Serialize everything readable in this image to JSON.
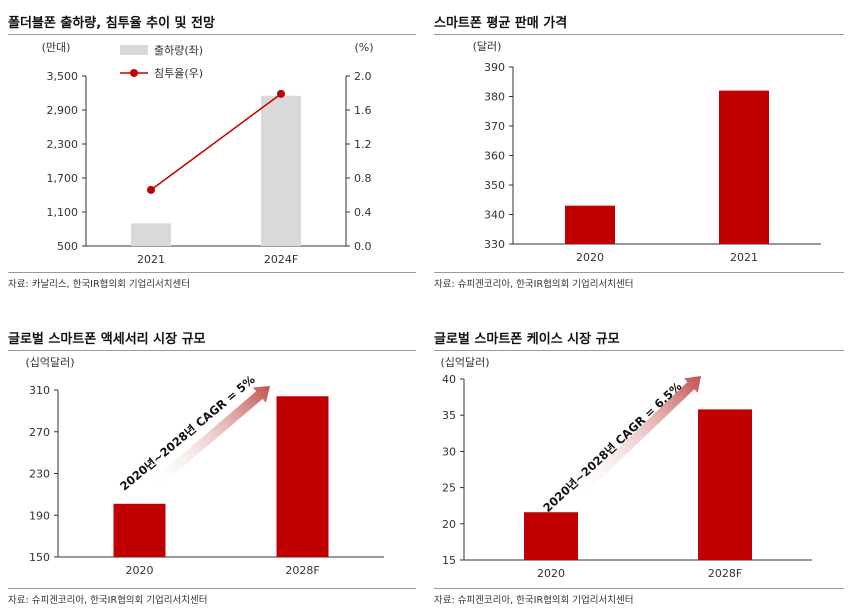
{
  "chart_data": [
    {
      "type": "bar",
      "title": "폴더블폰 출하량, 침투율 추이 및 전망",
      "left_unit": "(만대)",
      "right_unit": "(%)",
      "categories": [
        "2021",
        "2024F"
      ],
      "yticks": [
        "3,500",
        "2,900",
        "2,300",
        "1,700",
        "1,100",
        "500"
      ],
      "y2ticks": [
        "2.0",
        "1.6",
        "1.2",
        "0.8",
        "0.4",
        "0.0"
      ],
      "ylim": [
        500,
        3500
      ],
      "y2lim": [
        0,
        2.0
      ],
      "series": [
        {
          "name": "출하량(좌)",
          "kind": "bar",
          "axis": "left",
          "values": [
            900,
            3150
          ]
        },
        {
          "name": "침투율(우)",
          "kind": "line",
          "axis": "right",
          "values": [
            0.66,
            1.79
          ]
        }
      ],
      "colors": {
        "bar": "#d9d9d9",
        "line": "#c00000"
      },
      "source": "자료: 카날리스, 한국IR협의회 기업리서치센터"
    },
    {
      "type": "bar",
      "title": "스마트폰 평균 판매 가격",
      "left_unit": "(달러)",
      "categories": [
        "2020",
        "2021"
      ],
      "yticks": [
        "390",
        "380",
        "370",
        "360",
        "350",
        "340",
        "330"
      ],
      "ylim": [
        330,
        390
      ],
      "values": [
        343,
        382
      ],
      "colors": {
        "bar": "#c00000"
      },
      "source": "자료: 슈피겐코리아, 한국IR협의회 기업리서치센터"
    },
    {
      "type": "bar",
      "title": "글로벌 스마트폰 액세서리 시장 규모",
      "left_unit": "(십억달러)",
      "categories": [
        "2020",
        "2028F"
      ],
      "yticks": [
        "310",
        "270",
        "230",
        "190",
        "150"
      ],
      "ylim": [
        150,
        310
      ],
      "values": [
        201,
        304
      ],
      "annotation": "2020년~2028년 CAGR = 5%",
      "colors": {
        "bar": "#c00000"
      },
      "source": "자료: 슈피겐코리아, 한국IR협의회 기업리서치센터"
    },
    {
      "type": "bar",
      "title": "글로벌 스마트폰 케이스 시장 규모",
      "left_unit": "(십억달러)",
      "categories": [
        "2020",
        "2028F"
      ],
      "yticks": [
        "40",
        "35",
        "30",
        "25",
        "20",
        "15"
      ],
      "ylim": [
        15,
        40
      ],
      "values": [
        21.6,
        35.8
      ],
      "annotation": "2020년~2028년 CAGR = 6.5%",
      "colors": {
        "bar": "#c00000"
      },
      "source": "자료: 슈피겐코리아, 한국IR협의회 기업리서치센터"
    }
  ]
}
